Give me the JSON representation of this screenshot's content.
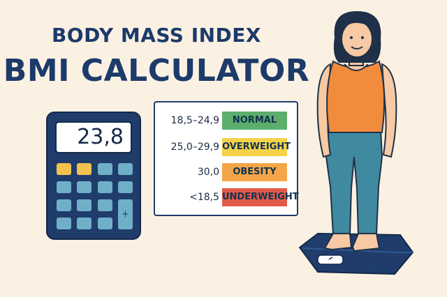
{
  "title": {
    "line1": "BODY MASS INDEX",
    "line2": "BMI CALCULATOR"
  },
  "calculator": {
    "display": "23,8",
    "plus_key": "+"
  },
  "bmi_table": {
    "rows": [
      {
        "range": "18,5–24,9",
        "category": "NORMAL",
        "color": "#5bae6b",
        "text_color": "#12324f"
      },
      {
        "range": "25,0–29,9",
        "category": "OVERWEIGHT",
        "color": "#f4d34a",
        "text_color": "#12324f"
      },
      {
        "range": "30,0",
        "category": "OBESITY",
        "color": "#f3a548",
        "text_color": "#12324f"
      },
      {
        "range": "<18,5",
        "category": "UNDERWEIGHT",
        "color": "#e05a48",
        "text_color": "#12324f"
      }
    ]
  },
  "colors": {
    "background": "#fbf1e3",
    "navy": "#1f3c6b",
    "key_blue": "#6fb0c8",
    "key_yellow": "#f2c14e",
    "shirt": "#f08c3c",
    "pants": "#3f8aa0",
    "skin": "#f7c9a4",
    "hair": "#1f3048"
  }
}
